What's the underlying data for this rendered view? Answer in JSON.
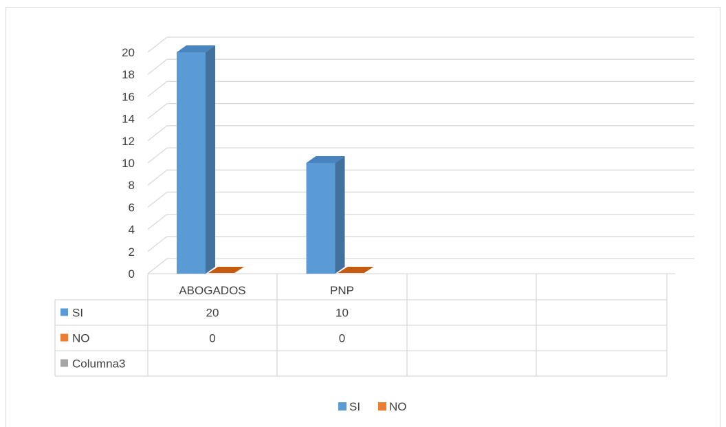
{
  "chart_data": {
    "type": "bar",
    "style": "3d-clustered-column-with-data-table",
    "categories": [
      "ABOGADOS",
      "PNP",
      "",
      ""
    ],
    "series": [
      {
        "name": "SI",
        "values": [
          20,
          10,
          null,
          null
        ],
        "color": "#5b9bd5",
        "side_color": "#41719c",
        "top_color": "#4a84bf"
      },
      {
        "name": "NO",
        "values": [
          0,
          0,
          null,
          null
        ],
        "color": "#ed7d31",
        "side_color": "#ae5a21",
        "top_color": "#c55a11"
      },
      {
        "name": "Columna3",
        "values": [
          null,
          null,
          null,
          null
        ],
        "color": "#a5a5a5"
      }
    ],
    "y_ticks": [
      "0",
      "2",
      "4",
      "6",
      "8",
      "10",
      "12",
      "14",
      "16",
      "18",
      "20"
    ],
    "ylim": [
      0,
      20
    ],
    "grid": true,
    "legend": {
      "position": "bottom",
      "entries": [
        "SI",
        "NO"
      ]
    },
    "data_table": {
      "rows": [
        {
          "label": "SI",
          "cells": [
            "20",
            "10",
            "",
            ""
          ]
        },
        {
          "label": "NO",
          "cells": [
            "0",
            "0",
            "",
            ""
          ]
        },
        {
          "label": "Columna3",
          "cells": [
            "",
            "",
            "",
            ""
          ]
        }
      ]
    },
    "title": "",
    "xlabel": "",
    "ylabel": ""
  }
}
